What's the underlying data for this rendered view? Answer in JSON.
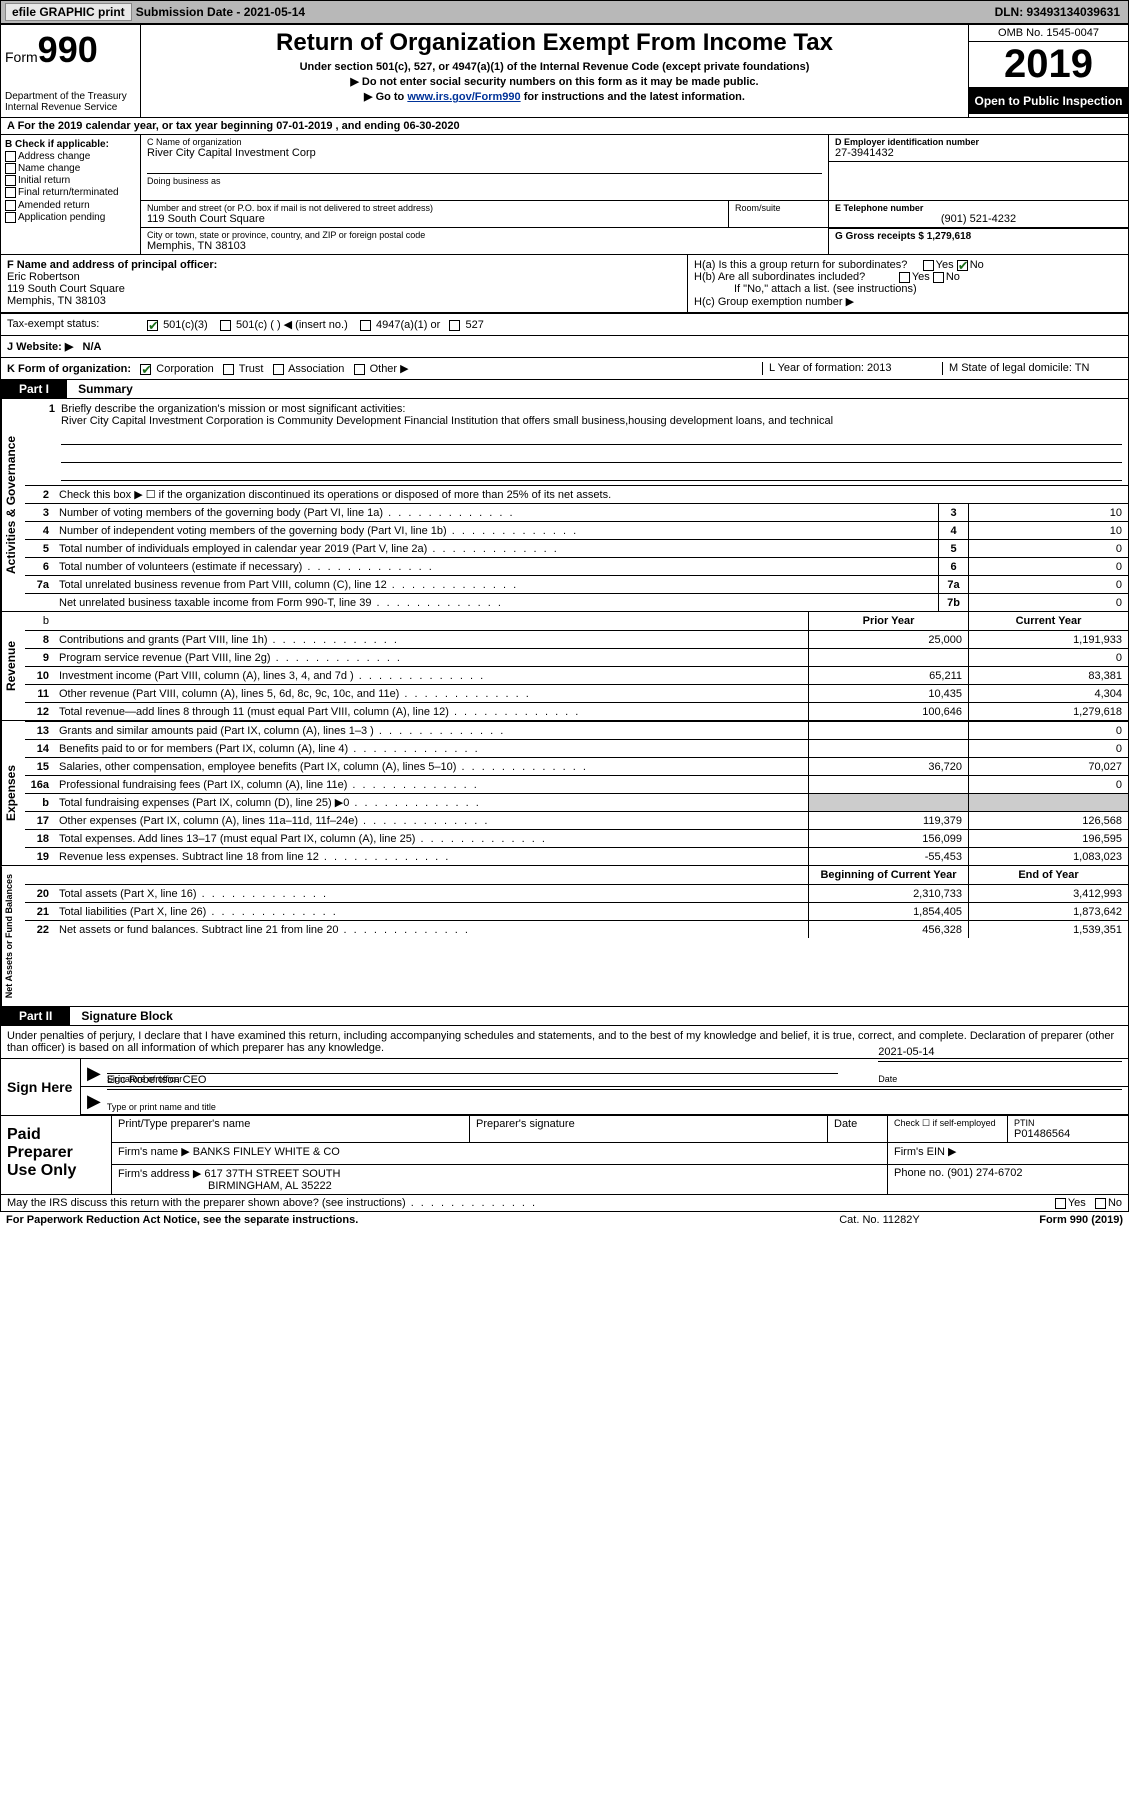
{
  "topbar": {
    "efile": "efile GRAPHIC print",
    "sub_label": "Submission Date - 2021-05-14",
    "dln_label": "DLN: 93493134039631"
  },
  "header": {
    "form_word": "Form",
    "form_num": "990",
    "dept": "Department of the Treasury\nInternal Revenue Service",
    "title": "Return of Organization Exempt From Income Tax",
    "subtitle": "Under section 501(c), 527, or 4947(a)(1) of the Internal Revenue Code (except private foundations)",
    "note1": "▶ Do not enter social security numbers on this form as it may be made public.",
    "note2_pre": "▶ Go to ",
    "note2_link": "www.irs.gov/Form990",
    "note2_post": " for instructions and the latest information.",
    "omb": "OMB No. 1545-0047",
    "year": "2019",
    "inspect": "Open to Public Inspection"
  },
  "row_a": "A For the 2019 calendar year, or tax year beginning 07-01-2019   , and ending 06-30-2020",
  "section_b": {
    "title": "B Check if applicable:",
    "items": [
      "Address change",
      "Name change",
      "Initial return",
      "Final return/terminated",
      "Amended return",
      "Application pending"
    ]
  },
  "section_c": {
    "label_name": "C Name of organization",
    "org_name": "River City Capital Investment Corp",
    "dba_label": "Doing business as",
    "addr_label": "Number and street (or P.O. box if mail is not delivered to street address)",
    "room_label": "Room/suite",
    "address": "119 South Court Square",
    "city_label": "City or town, state or province, country, and ZIP or foreign postal code",
    "city": "Memphis, TN  38103"
  },
  "section_d": {
    "label": "D Employer identification number",
    "value": "27-3941432"
  },
  "section_e": {
    "label": "E Telephone number",
    "value": "(901) 521-4232"
  },
  "section_g": {
    "label": "G Gross receipts $ 1,279,618"
  },
  "section_f": {
    "label": "F  Name and address of principal officer:",
    "name": "Eric Robertson",
    "addr1": "119 South Court Square",
    "addr2": "Memphis, TN  38103"
  },
  "section_h": {
    "ha": "H(a)  Is this a group return for subordinates?",
    "hb": "H(b)  Are all subordinates included?",
    "hb_note": "If \"No,\" attach a list. (see instructions)",
    "hc": "H(c)  Group exemption number ▶",
    "yes": "Yes",
    "no": "No"
  },
  "tax_status": {
    "label": "Tax-exempt status:",
    "opt1": "501(c)(3)",
    "opt2": "501(c) (  ) ◀ (insert no.)",
    "opt3": "4947(a)(1) or",
    "opt4": "527"
  },
  "website": {
    "label": "J   Website: ▶",
    "value": "N/A"
  },
  "row_k": {
    "label": "K Form of organization:",
    "opts": [
      "Corporation",
      "Trust",
      "Association",
      "Other ▶"
    ],
    "l_label": "L Year of formation: 2013",
    "m_label": "M State of legal domicile: TN"
  },
  "part1": {
    "hdr": "Part I",
    "title": "Summary"
  },
  "mission": {
    "num": "1",
    "label": "Briefly describe the organization's mission or most significant activities:",
    "text": "River City Capital Investment Corporation is Community Development Financial Institution that offers small business,housing development loans, and technical"
  },
  "activities": {
    "side": "Activities & Governance",
    "line2": "Check this box ▶ ☐  if the organization discontinued its operations or disposed of more than 25% of its net assets.",
    "rows": [
      {
        "n": "3",
        "d": "Number of voting members of the governing body (Part VI, line 1a)",
        "b": "3",
        "v": "10"
      },
      {
        "n": "4",
        "d": "Number of independent voting members of the governing body (Part VI, line 1b)",
        "b": "4",
        "v": "10"
      },
      {
        "n": "5",
        "d": "Total number of individuals employed in calendar year 2019 (Part V, line 2a)",
        "b": "5",
        "v": "0"
      },
      {
        "n": "6",
        "d": "Total number of volunteers (estimate if necessary)",
        "b": "6",
        "v": "0"
      },
      {
        "n": "7a",
        "d": "Total unrelated business revenue from Part VIII, column (C), line 12",
        "b": "7a",
        "v": "0"
      },
      {
        "n": "",
        "d": "Net unrelated business taxable income from Form 990-T, line 39",
        "b": "7b",
        "v": "0"
      }
    ]
  },
  "two_col_hdr": {
    "prior": "Prior Year",
    "current": "Current Year"
  },
  "revenue": {
    "side": "Revenue",
    "rows": [
      {
        "n": "8",
        "d": "Contributions and grants (Part VIII, line 1h)",
        "p": "25,000",
        "c": "1,191,933"
      },
      {
        "n": "9",
        "d": "Program service revenue (Part VIII, line 2g)",
        "p": "",
        "c": "0"
      },
      {
        "n": "10",
        "d": "Investment income (Part VIII, column (A), lines 3, 4, and 7d )",
        "p": "65,211",
        "c": "83,381"
      },
      {
        "n": "11",
        "d": "Other revenue (Part VIII, column (A), lines 5, 6d, 8c, 9c, 10c, and 11e)",
        "p": "10,435",
        "c": "4,304"
      },
      {
        "n": "12",
        "d": "Total revenue—add lines 8 through 11 (must equal Part VIII, column (A), line 12)",
        "p": "100,646",
        "c": "1,279,618"
      }
    ]
  },
  "expenses": {
    "side": "Expenses",
    "rows": [
      {
        "n": "13",
        "d": "Grants and similar amounts paid (Part IX, column (A), lines 1–3 )",
        "p": "",
        "c": "0"
      },
      {
        "n": "14",
        "d": "Benefits paid to or for members (Part IX, column (A), line 4)",
        "p": "",
        "c": "0"
      },
      {
        "n": "15",
        "d": "Salaries, other compensation, employee benefits (Part IX, column (A), lines 5–10)",
        "p": "36,720",
        "c": "70,027"
      },
      {
        "n": "16a",
        "d": "Professional fundraising fees (Part IX, column (A), line 11e)",
        "p": "",
        "c": "0"
      },
      {
        "n": "b",
        "d": "Total fundraising expenses (Part IX, column (D), line 25) ▶0",
        "p": "SHADED",
        "c": "SHADED"
      },
      {
        "n": "17",
        "d": "Other expenses (Part IX, column (A), lines 11a–11d, 11f–24e)",
        "p": "119,379",
        "c": "126,568"
      },
      {
        "n": "18",
        "d": "Total expenses. Add lines 13–17 (must equal Part IX, column (A), line 25)",
        "p": "156,099",
        "c": "196,595"
      },
      {
        "n": "19",
        "d": "Revenue less expenses. Subtract line 18 from line 12",
        "p": "-55,453",
        "c": "1,083,023"
      }
    ]
  },
  "net_hdr": {
    "begin": "Beginning of Current Year",
    "end": "End of Year"
  },
  "net": {
    "side": "Net Assets or Fund Balances",
    "rows": [
      {
        "n": "20",
        "d": "Total assets (Part X, line 16)",
        "p": "2,310,733",
        "c": "3,412,993"
      },
      {
        "n": "21",
        "d": "Total liabilities (Part X, line 26)",
        "p": "1,854,405",
        "c": "1,873,642"
      },
      {
        "n": "22",
        "d": "Net assets or fund balances. Subtract line 21 from line 20",
        "p": "456,328",
        "c": "1,539,351"
      }
    ]
  },
  "part2": {
    "hdr": "Part II",
    "title": "Signature Block"
  },
  "perjury": "Under penalties of perjury, I declare that I have examined this return, including accompanying schedules and statements, and to the best of my knowledge and belief, it is true, correct, and complete. Declaration of preparer (other than officer) is based on all information of which preparer has any knowledge.",
  "sign": {
    "side": "Sign Here",
    "sig_label": "Signature of officer",
    "date_label": "Date",
    "date_val": "2021-05-14",
    "name": "Eric Robertson  CEO",
    "name_label": "Type or print name and title"
  },
  "preparer": {
    "side": "Paid Preparer Use Only",
    "h1": "Print/Type preparer's name",
    "h2": "Preparer's signature",
    "h3": "Date",
    "h4_pre": "Check ☐ if self-employed",
    "h5": "PTIN",
    "ptin": "P01486564",
    "firm_label": "Firm's name    ▶",
    "firm": "BANKS FINLEY WHITE & CO",
    "ein_label": "Firm's EIN ▶",
    "addr_label": "Firm's address ▶",
    "addr1": "617 37TH STREET SOUTH",
    "addr2": "BIRMINGHAM, AL  35222",
    "phone_label": "Phone no. (901) 274-6702"
  },
  "discuss": "May the IRS discuss this return with the preparer shown above? (see instructions)",
  "footer": {
    "left": "For Paperwork Reduction Act Notice, see the separate instructions.",
    "mid": "Cat. No. 11282Y",
    "right": "Form 990 (2019)"
  }
}
